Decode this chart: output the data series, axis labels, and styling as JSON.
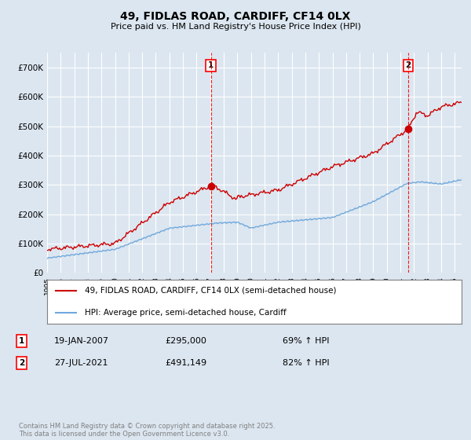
{
  "title": "49, FIDLAS ROAD, CARDIFF, CF14 0LX",
  "subtitle": "Price paid vs. HM Land Registry's House Price Index (HPI)",
  "background_color": "#dce6f0",
  "plot_bg_color": "#dce6f0",
  "grid_color": "#ffffff",
  "hpi_color": "#6fa8dc",
  "price_color": "#cc0000",
  "sale1_price": 295000,
  "sale2_price": 491149,
  "ylim": [
    0,
    750000
  ],
  "yticks": [
    0,
    100000,
    200000,
    300000,
    400000,
    500000,
    600000,
    700000
  ],
  "ytick_labels": [
    "£0",
    "£100K",
    "£200K",
    "£300K",
    "£400K",
    "£500K",
    "£600K",
    "£700K"
  ],
  "legend_label_price": "49, FIDLAS ROAD, CARDIFF, CF14 0LX (semi-detached house)",
  "legend_label_hpi": "HPI: Average price, semi-detached house, Cardiff",
  "footnote": "Contains HM Land Registry data © Crown copyright and database right 2025.\nThis data is licensed under the Open Government Licence v3.0.",
  "sale1_x": 2007.05,
  "sale2_x": 2021.57,
  "sale1_label": "19-JAN-2007",
  "sale1_amount": "£295,000",
  "sale1_hpi": "69% ↑ HPI",
  "sale2_label": "27-JUL-2021",
  "sale2_amount": "£491,149",
  "sale2_hpi": "82% ↑ HPI"
}
